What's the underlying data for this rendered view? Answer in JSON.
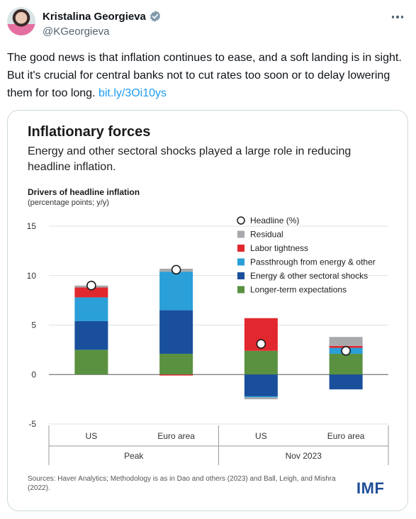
{
  "author": {
    "name": "Kristalina Georgieva",
    "handle": "@KGeorgieva"
  },
  "tweet": {
    "text": "The good news is that inflation continues to ease, and a soft landing is in sight. But it's crucial for central banks not to cut rates too soon or to delay lowering them for too long.",
    "link": "bit.ly/3Oi10ys"
  },
  "card": {
    "title": "Inflationary forces",
    "subtitle": "Energy and other sectoral shocks played a large role in reducing headline inflation.",
    "chart_label": "Drivers of headline inflation",
    "units": "(percentage points; y/y)",
    "sources": "Sources: Haver Analytics; Methodology is as in Dao and others (2023) and Ball, Leigh, and Mishra (2022).",
    "brand": "IMF"
  },
  "chart_data": {
    "type": "bar",
    "stacked": true,
    "categories": [
      "US",
      "Euro area",
      "US",
      "Euro area"
    ],
    "groups": [
      {
        "label": "Peak",
        "categories": [
          "US",
          "Euro area"
        ]
      },
      {
        "label": "Nov 2023",
        "categories": [
          "US",
          "Euro area"
        ]
      }
    ],
    "ylim": [
      -5,
      15
    ],
    "yticks": [
      -5,
      0,
      5,
      10,
      15
    ],
    "legend_position": "top-right",
    "series": [
      {
        "name": "Longer-term expectations",
        "color": "#5a9140",
        "values": [
          2.5,
          2.1,
          2.4,
          2.1
        ]
      },
      {
        "name": "Energy & other sectoral shocks",
        "color": "#1a4f9c",
        "values": [
          2.9,
          4.4,
          -2.2,
          -1.5
        ]
      },
      {
        "name": "Passthrough from energy & other",
        "color": "#2a9fd8",
        "values": [
          2.4,
          3.9,
          -0.1,
          0.6
        ]
      },
      {
        "name": "Labor tightness",
        "color": "#e0282e",
        "values": [
          1.0,
          -0.1,
          3.3,
          0.2
        ]
      },
      {
        "name": "Residual",
        "color": "#a8a9ad",
        "values": [
          0.2,
          0.3,
          -0.2,
          0.9
        ]
      }
    ],
    "headline": {
      "name": "Headline (%)",
      "values": [
        9.0,
        10.6,
        3.1,
        2.4
      ]
    }
  },
  "colors": {
    "link": "#1d9bf0",
    "brand": "#1f4e97",
    "verified": "#829aab"
  }
}
